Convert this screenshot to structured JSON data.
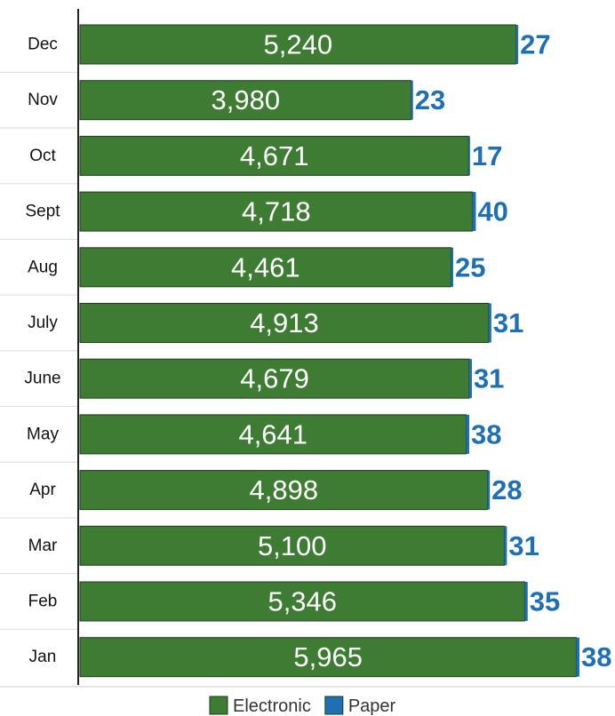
{
  "chart_data": {
    "type": "stacked-barh",
    "categories": [
      "Dec",
      "Nov",
      "Oct",
      "Sept",
      "Aug",
      "July",
      "June",
      "May",
      "Apr",
      "Mar",
      "Feb",
      "Jan"
    ],
    "series": [
      {
        "name": "Electronic",
        "color": "#3e7b33",
        "values": [
          5240,
          3980,
          4671,
          4718,
          4461,
          4913,
          4679,
          4641,
          4898,
          5100,
          5346,
          5965
        ],
        "value_labels": [
          "5,240",
          "3,980",
          "4,671",
          "4,718",
          "4,461",
          "4,913",
          "4,679",
          "4,641",
          "4,898",
          "5,100",
          "5,346",
          "5,965"
        ]
      },
      {
        "name": "Paper",
        "color": "#1f6fb5",
        "values": [
          27,
          23,
          17,
          40,
          25,
          31,
          31,
          38,
          28,
          31,
          35,
          38
        ]
      }
    ],
    "legend": "bottom"
  }
}
